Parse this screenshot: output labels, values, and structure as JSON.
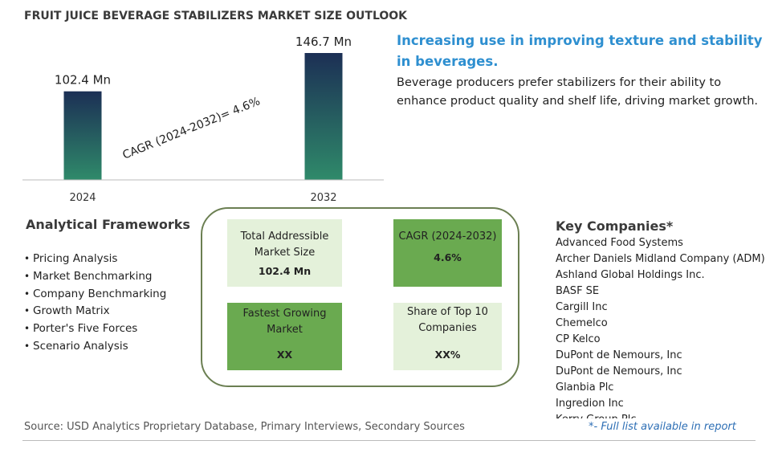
{
  "title": "FRUIT JUICE BEVERAGE STABILIZERS MARKET SIZE OUTLOOK",
  "chart_data": {
    "type": "bar",
    "categories": [
      "2024",
      "2032"
    ],
    "values": [
      102.4,
      146.7
    ],
    "value_labels": [
      "102.4 Mn",
      "146.7 Mn"
    ],
    "annotation": "CAGR (2024-2032)=  4.6%",
    "colors": {
      "bar_top": "#1c2f55",
      "bar_bottom": "#2f8a6a",
      "axis": "#bbbbbb"
    }
  },
  "headline": "Increasing use in improving texture and stability in beverages.",
  "description": "Beverage producers prefer stabilizers for their ability to enhance product quality and shelf life, driving market growth.",
  "analytical_frameworks": {
    "title": "Analytical Frameworks",
    "items": [
      "Pricing Analysis",
      "Market Benchmarking",
      "Company Benchmarking",
      "Growth Matrix",
      "Porter's Five Forces",
      "Scenario Analysis"
    ]
  },
  "summary_tiles": [
    {
      "label": "Total Addressible Market Size",
      "value": "102.4 Mn"
    },
    {
      "label": "CAGR (2024-2032)",
      "value": "4.6%"
    },
    {
      "label": "Fastest Growing Market",
      "value": "XX"
    },
    {
      "label": "Share of Top 10 Companies",
      "value": "XX%"
    }
  ],
  "key_companies": {
    "title": "Key Companies*",
    "items": [
      "Advanced Food Systems",
      "Archer Daniels Midland Company (ADM)",
      "Ashland Global Holdings Inc.",
      "BASF SE",
      "Cargill Inc",
      "Chemelco",
      "CP Kelco",
      "DuPont de Nemours, Inc",
      "DuPont de Nemours, Inc",
      "Glanbia Plc",
      "Ingredion Inc",
      "Kerry Group Plc"
    ],
    "note": "*- Full list available in report"
  },
  "source": "Source: USD Analytics Proprietary Database, Primary Interviews, Secondary Sources",
  "colors": {
    "tile_light": "#e4f1da",
    "tile_dark": "#6aaa50",
    "headline": "#2e8fd0",
    "box_border": "#6b7f52"
  }
}
